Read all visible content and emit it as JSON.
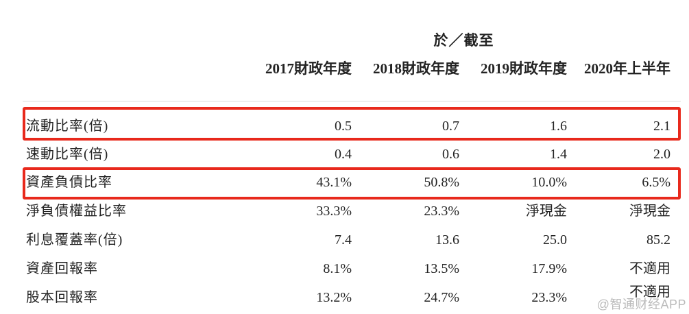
{
  "table": {
    "period_header": "於／截至",
    "columns": [
      "2017財政年度",
      "2018財政年度",
      "2019財政年度",
      "2020年上半年"
    ],
    "rows": [
      {
        "label": "流動比率(倍)",
        "values": [
          "0.5",
          "0.7",
          "1.6",
          "2.1"
        ],
        "highlighted": true
      },
      {
        "label": "速動比率(倍)",
        "values": [
          "0.4",
          "0.6",
          "1.4",
          "2.0"
        ],
        "highlighted": false
      },
      {
        "label": "資產負債比率",
        "values": [
          "43.1%",
          "50.8%",
          "10.0%",
          "6.5%"
        ],
        "highlighted": true
      },
      {
        "label": "淨負債權益比率",
        "values": [
          "33.3%",
          "23.3%",
          "淨現金",
          "淨現金"
        ],
        "highlighted": false
      },
      {
        "label": "利息覆蓋率(倍)",
        "values": [
          "7.4",
          "13.6",
          "25.0",
          "85.2"
        ],
        "highlighted": false
      },
      {
        "label": "資產回報率",
        "values": [
          "8.1%",
          "13.5%",
          "17.9%",
          "不適用"
        ],
        "highlighted": false
      },
      {
        "label": "股本回報率",
        "values": [
          "13.2%",
          "24.7%",
          "23.3%",
          "不適用"
        ],
        "highlighted": false
      }
    ]
  },
  "watermark": {
    "text": "@智通财经APP"
  },
  "colors": {
    "text": "#232323",
    "highlight_border": "#e8291c",
    "divider": "#d9d9d9",
    "watermark": "#b0b0b0"
  }
}
